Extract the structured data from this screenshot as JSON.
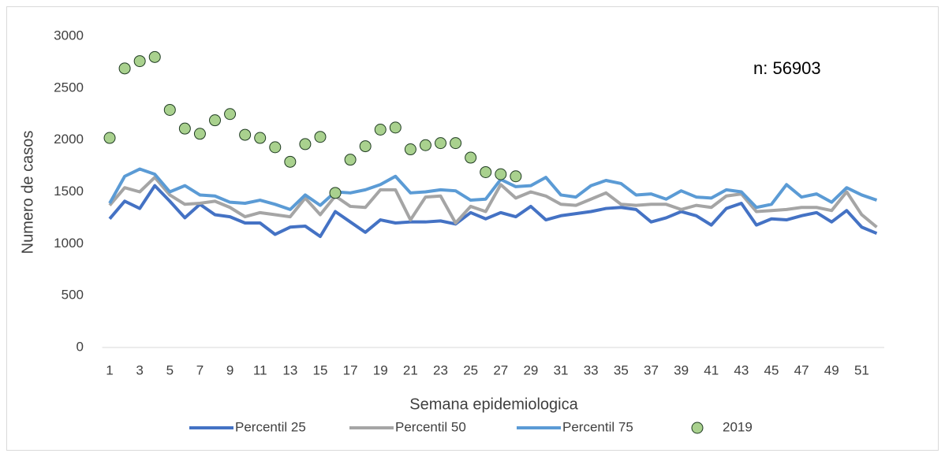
{
  "chart_data": {
    "type": "line",
    "annotation": "n: 56903",
    "x_label": "Semana epidemiologica",
    "y_label": "Numero de casos",
    "categories": [
      1,
      null,
      3,
      null,
      5,
      null,
      7,
      null,
      9,
      null,
      11,
      null,
      13,
      null,
      15,
      null,
      17,
      null,
      19,
      null,
      21,
      null,
      23,
      null,
      25,
      null,
      27,
      null,
      29,
      null,
      31,
      null,
      33,
      null,
      35,
      null,
      37,
      null,
      39,
      null,
      41,
      null,
      43,
      null,
      45,
      null,
      47,
      null,
      49,
      null,
      51,
      null
    ],
    "ylim": [
      0,
      3000
    ],
    "yticks": [
      0,
      500,
      1000,
      1500,
      2000,
      2500,
      3000
    ],
    "grid": false,
    "legend": "bottom",
    "series": [
      {
        "name": "Percentil 25",
        "type": "line",
        "color": "#4472c4",
        "values": [
          1240,
          1410,
          1340,
          1560,
          1410,
          1250,
          1380,
          1280,
          1260,
          1200,
          1200,
          1090,
          1160,
          1170,
          1070,
          1310,
          1210,
          1110,
          1230,
          1200,
          1210,
          1210,
          1220,
          1190,
          1300,
          1240,
          1300,
          1260,
          1360,
          1230,
          1270,
          1290,
          1310,
          1340,
          1350,
          1330,
          1210,
          1250,
          1310,
          1270,
          1180,
          1340,
          1390,
          1180,
          1240,
          1230,
          1270,
          1300,
          1210,
          1320,
          1160,
          1100
        ]
      },
      {
        "name": "Percentil 50",
        "type": "line",
        "color": "#a5a5a5",
        "values": [
          1370,
          1540,
          1500,
          1640,
          1470,
          1380,
          1390,
          1410,
          1350,
          1260,
          1300,
          1280,
          1260,
          1440,
          1280,
          1460,
          1360,
          1350,
          1520,
          1520,
          1230,
          1450,
          1460,
          1200,
          1360,
          1310,
          1570,
          1440,
          1500,
          1460,
          1380,
          1370,
          1430,
          1490,
          1380,
          1370,
          1380,
          1380,
          1330,
          1370,
          1350,
          1460,
          1480,
          1310,
          1320,
          1330,
          1350,
          1350,
          1320,
          1500,
          1280,
          1160
        ]
      },
      {
        "name": "Percentil 75",
        "type": "line",
        "color": "#5b9bd5",
        "values": [
          1390,
          1650,
          1720,
          1670,
          1500,
          1560,
          1470,
          1460,
          1400,
          1390,
          1420,
          1380,
          1330,
          1470,
          1370,
          1500,
          1490,
          1520,
          1570,
          1650,
          1490,
          1500,
          1520,
          1510,
          1420,
          1430,
          1620,
          1550,
          1560,
          1640,
          1470,
          1450,
          1560,
          1610,
          1580,
          1470,
          1480,
          1430,
          1510,
          1450,
          1440,
          1520,
          1500,
          1350,
          1380,
          1570,
          1450,
          1480,
          1400,
          1540,
          1470,
          1420
        ]
      },
      {
        "name": "2019",
        "type": "scatter",
        "color": "#a9d18e",
        "edgecolor": "#1f3b22",
        "values": [
          2020,
          2690,
          2760,
          2800,
          2290,
          2110,
          2060,
          2190,
          2250,
          2050,
          2020,
          1930,
          1790,
          1960,
          2030,
          1490,
          1810,
          1940,
          2100,
          2120,
          1910,
          1950,
          1970,
          1970,
          1830,
          1690,
          1670,
          1650
        ]
      }
    ]
  }
}
